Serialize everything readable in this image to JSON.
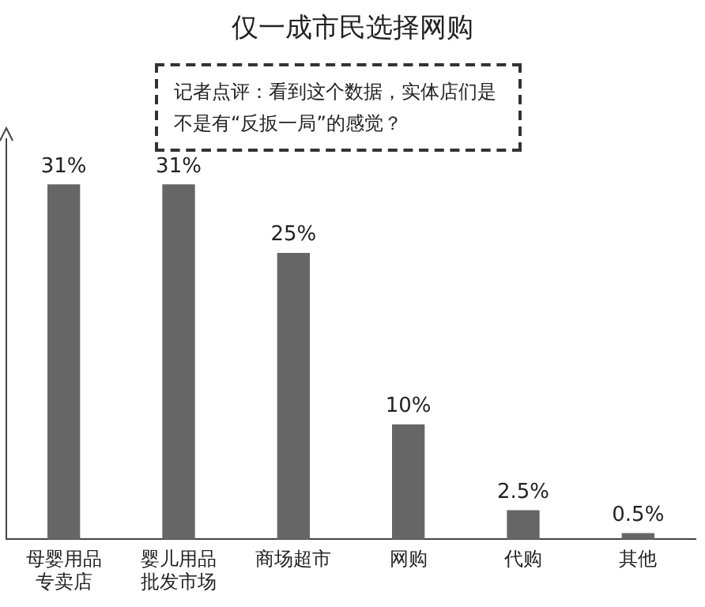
{
  "chart_data": {
    "type": "bar",
    "title": "仅一成市民选择网购",
    "annotations": [
      "记者点评：看到这个数据，实体店们是不是有“反扳一局”的感觉？"
    ],
    "categories": [
      "母婴用品专卖店",
      "婴儿用品批发市场",
      "商场超市",
      "网购",
      "代购",
      "其他"
    ],
    "values": [
      31,
      31,
      25,
      10,
      2.5,
      0.5
    ],
    "value_labels": [
      "31%",
      "31%",
      "25%",
      "10%",
      "2.5%",
      "0.5%"
    ],
    "color": "#666666",
    "grid": false,
    "legend": false,
    "tick_labels": "x"
  }
}
